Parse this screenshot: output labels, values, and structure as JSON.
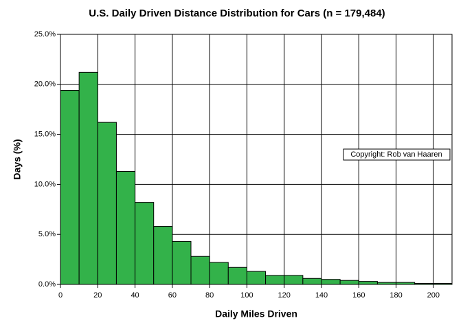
{
  "chart_data": {
    "type": "histogram",
    "title": "U.S. Daily Driven Distance Distribution for Cars (n = 179,484)",
    "x_label": "Daily Miles Driven",
    "y_label": "Days (%)",
    "annotation": "Copyright: Rob van Haaren",
    "bins": [
      0,
      10,
      20,
      30,
      40,
      50,
      60,
      70,
      80,
      90,
      100,
      110,
      120,
      130,
      140,
      150,
      160,
      170,
      180,
      190,
      200,
      210
    ],
    "values": [
      19.4,
      21.2,
      16.2,
      11.3,
      8.2,
      5.8,
      4.3,
      2.8,
      2.2,
      1.7,
      1.3,
      0.9,
      0.9,
      0.6,
      0.5,
      0.4,
      0.3,
      0.2,
      0.2,
      0.1,
      0.1
    ],
    "color": "#33b24a",
    "xlim": [
      0,
      210
    ],
    "xticks": [
      0,
      20,
      40,
      60,
      80,
      100,
      120,
      140,
      160,
      180,
      200
    ],
    "ylim": [
      0,
      25
    ],
    "yticks": [
      {
        "value": 0,
        "label": "0.0%"
      },
      {
        "value": 5,
        "label": "5.0%"
      },
      {
        "value": 10,
        "label": "10.0%"
      },
      {
        "value": 15,
        "label": "15.0%"
      },
      {
        "value": 20,
        "label": "20.0%"
      },
      {
        "value": 25,
        "label": "25.0%"
      }
    ],
    "grid": true
  }
}
